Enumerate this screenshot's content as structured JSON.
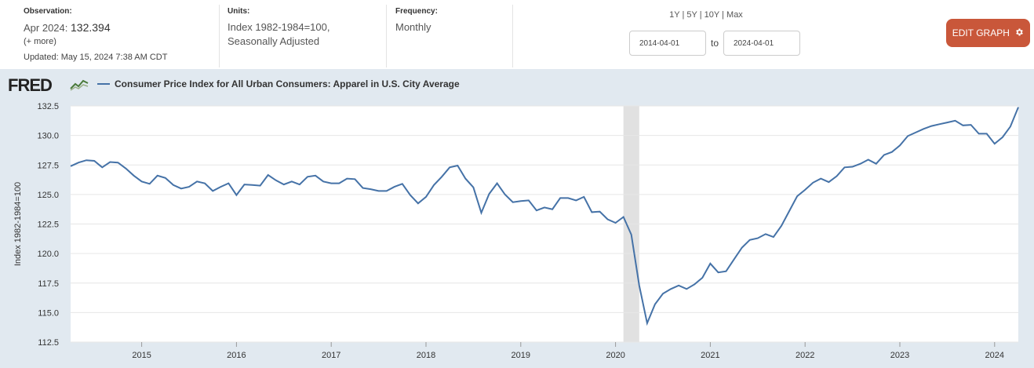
{
  "header": {
    "observation_label": "Observation:",
    "observation_value_prefix": "Apr 2024:",
    "observation_value": "132.394",
    "more_link": "(+ more)",
    "updated_label": "Updated:",
    "updated_value": "May 15, 2024 7:38 AM CDT",
    "units_label": "Units:",
    "units_line1": "Index 1982-1984=100,",
    "units_line2": "Seasonally Adjusted",
    "frequency_label": "Frequency:",
    "frequency_value": "Monthly"
  },
  "range_controls": {
    "ranges": [
      "1Y",
      "5Y",
      "10Y",
      "Max"
    ],
    "start_date": "2014-04-01",
    "to_label": "to",
    "end_date": "2024-04-01"
  },
  "edit_button": {
    "label": "EDIT GRAPH"
  },
  "brand": {
    "logo_text": "FRED"
  },
  "colors": {
    "series": "#4572a7",
    "recession": "#e1e1e1",
    "button": "#c9573a",
    "plot_bg": "#e1e9f0"
  },
  "chart_data": {
    "type": "line",
    "title": "Consumer Price Index for All Urban Consumers: Apparel in U.S. City Average",
    "ylabel": "Index 1982-1984=100",
    "xlabel": "",
    "ylim": [
      112.5,
      132.5
    ],
    "yticks": [
      "112.5",
      "115.0",
      "117.5",
      "120.0",
      "122.5",
      "125.0",
      "127.5",
      "130.0",
      "132.5"
    ],
    "xticks": [
      "2015",
      "2016",
      "2017",
      "2018",
      "2019",
      "2020",
      "2021",
      "2022",
      "2023",
      "2024"
    ],
    "grid": true,
    "x_start": "2014-04",
    "recession": {
      "start": "2020-02",
      "end": "2020-04"
    },
    "series": [
      {
        "name": "Consumer Price Index for All Urban Consumers: Apparel in U.S. City Average",
        "values": [
          127.4,
          127.7,
          127.9,
          127.85,
          127.3,
          127.75,
          127.7,
          127.2,
          126.6,
          126.1,
          125.9,
          126.6,
          126.4,
          125.8,
          125.5,
          125.65,
          126.1,
          125.95,
          125.3,
          125.65,
          125.95,
          124.95,
          125.85,
          125.8,
          125.75,
          126.65,
          126.2,
          125.85,
          126.1,
          125.85,
          126.5,
          126.6,
          126.1,
          125.95,
          125.95,
          126.35,
          126.3,
          125.55,
          125.45,
          125.3,
          125.3,
          125.65,
          125.9,
          124.95,
          124.25,
          124.8,
          125.8,
          126.5,
          127.3,
          127.45,
          126.35,
          125.6,
          123.45,
          125.05,
          125.95,
          125.0,
          124.35,
          124.45,
          124.5,
          123.65,
          123.9,
          123.75,
          124.7,
          124.7,
          124.5,
          124.8,
          123.5,
          123.55,
          122.9,
          122.6,
          123.1,
          121.6,
          117.3,
          114.1,
          115.7,
          116.6,
          117.0,
          117.3,
          117.0,
          117.4,
          117.95,
          119.15,
          118.4,
          118.5,
          119.5,
          120.5,
          121.15,
          121.3,
          121.65,
          121.4,
          122.35,
          123.6,
          124.85,
          125.4,
          126.0,
          126.35,
          126.05,
          126.55,
          127.3,
          127.35,
          127.6,
          127.95,
          127.6,
          128.35,
          128.6,
          129.15,
          129.95,
          130.25,
          130.55,
          130.8,
          130.95,
          131.1,
          131.25,
          130.85,
          130.9,
          130.15,
          130.15,
          129.3,
          129.85,
          130.75,
          132.394
        ]
      }
    ]
  }
}
